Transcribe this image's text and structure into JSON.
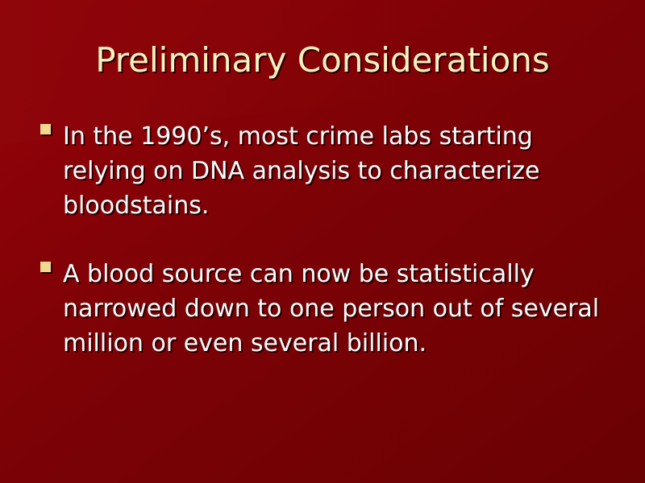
{
  "slide": {
    "title": "Preliminary Considerations",
    "bullets": [
      {
        "text": "In the 1990’s, most crime labs starting relying on DNA analysis to characterize bloodstains."
      },
      {
        "text": "A blood source can now be statistically narrowed down to one person out of several million or even several billion."
      }
    ]
  },
  "colors": {
    "background": "#7a0204",
    "title": "#fff3c0",
    "text": "#ffffff",
    "bullet": "#f2d98f"
  },
  "icons": {
    "bullet": "square-bullet-icon"
  }
}
